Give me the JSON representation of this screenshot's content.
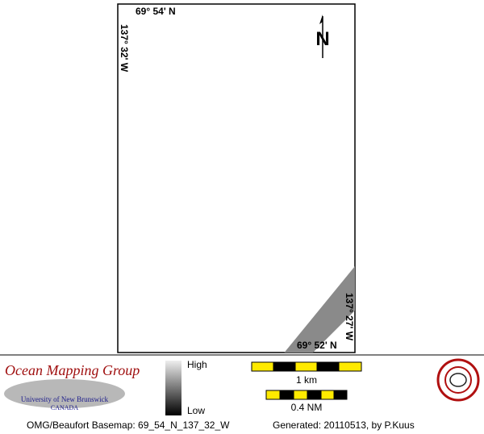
{
  "map": {
    "frame_labels": {
      "top_left": "69° 54' N",
      "left": "137° 32' W",
      "right": "137° 27' W",
      "bottom_right": "69° 52' N"
    },
    "north_arrow": "N",
    "logo": {
      "title": "Ocean Mapping Group",
      "university": "University of New Brunswick",
      "country": "CANADA"
    },
    "legend": {
      "high": "High",
      "low": "Low"
    },
    "scale_bars": [
      "1 km",
      "0.4 NM"
    ],
    "footer": {
      "basemap": "OMG/Beaufort Basemap: 69_54_N_137_32_W",
      "generated": "Generated: 20110513, by P.Kuus"
    }
  }
}
